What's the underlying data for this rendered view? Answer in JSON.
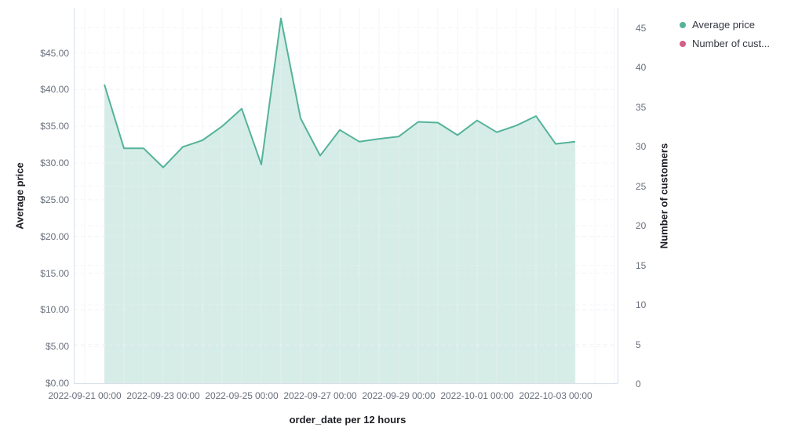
{
  "legend": {
    "position": "top-right",
    "items": [
      {
        "label": "Average price",
        "color": "#54B399",
        "series": "Average price"
      },
      {
        "label": "Number of cust...",
        "color": "#D36086",
        "series": "Number of customers"
      }
    ]
  },
  "chart_data": {
    "type": "area",
    "title": "",
    "xlabel": "order_date per 12 hours",
    "ylabel_left": "Average price",
    "ylabel_right": "Number of customers",
    "x": [
      "2022-09-21 12:00",
      "2022-09-22 00:00",
      "2022-09-22 12:00",
      "2022-09-23 00:00",
      "2022-09-23 12:00",
      "2022-09-24 00:00",
      "2022-09-24 12:00",
      "2022-09-25 00:00",
      "2022-09-25 12:00",
      "2022-09-26 00:00",
      "2022-09-26 12:00",
      "2022-09-27 00:00",
      "2022-09-27 12:00",
      "2022-09-28 00:00",
      "2022-09-28 12:00",
      "2022-09-29 00:00",
      "2022-09-29 12:00",
      "2022-09-30 00:00",
      "2022-09-30 12:00",
      "2022-10-01 00:00",
      "2022-10-01 12:00",
      "2022-10-02 00:00",
      "2022-10-02 12:00",
      "2022-10-03 00:00",
      "2022-10-03 12:00"
    ],
    "series": [
      {
        "name": "Average price",
        "axis": "left",
        "color": "#54B399",
        "values": [
          40.7,
          32.0,
          32.0,
          29.4,
          32.2,
          33.1,
          35.0,
          37.4,
          29.8,
          49.7,
          36.1,
          31.0,
          34.5,
          32.9,
          33.3,
          33.6,
          35.6,
          35.5,
          33.8,
          35.8,
          34.2,
          35.1,
          36.4,
          32.6,
          32.9
        ]
      },
      {
        "name": "Number of customers",
        "axis": "right",
        "color": "#D36086",
        "values": []
      }
    ],
    "y_left_ticks": [
      "$0.00",
      "$5.00",
      "$10.00",
      "$15.00",
      "$20.00",
      "$25.00",
      "$30.00",
      "$35.00",
      "$40.00",
      "$45.00"
    ],
    "y_right_ticks": [
      "0",
      "5",
      "10",
      "15",
      "20",
      "25",
      "30",
      "35",
      "40",
      "45"
    ],
    "x_ticks": [
      "2022-09-21 00:00",
      "2022-09-23 00:00",
      "2022-09-25 00:00",
      "2022-09-27 00:00",
      "2022-09-29 00:00",
      "2022-10-01 00:00",
      "2022-10-03 00:00"
    ],
    "ylim_left": [
      0,
      45
    ],
    "ylim_right": [
      0,
      45
    ],
    "grid": true,
    "legend_position": "top-right"
  },
  "colors": {
    "accent_green": "#54B399",
    "accent_pink": "#D36086",
    "area_fill": "rgba(84,179,153,0.24)",
    "grid_line": "#E6EAF1",
    "grid_overlay": "rgba(255,255,255,0.5)",
    "axis_edge": "#D9DFE9",
    "tick_label": "#69707D",
    "axis_title": "#1D1E24"
  }
}
